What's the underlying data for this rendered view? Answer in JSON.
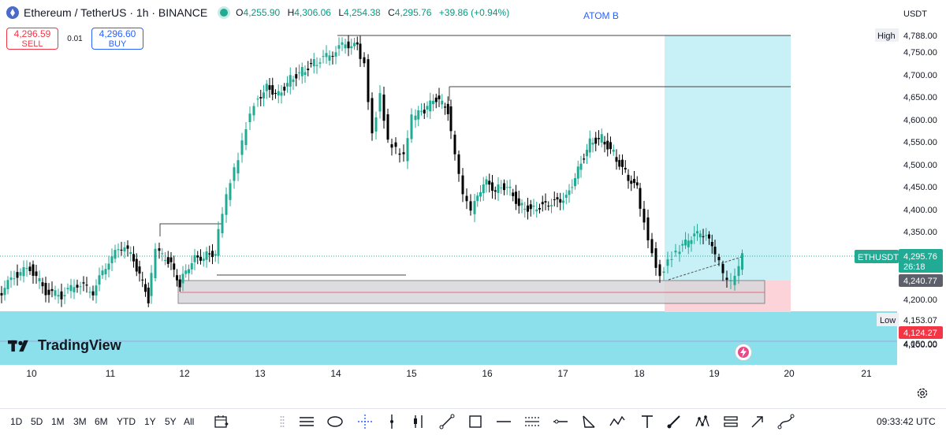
{
  "header": {
    "symbol": "Ethereum / TetherUS · 1h · BINANCE",
    "ohlc": [
      {
        "label": "O",
        "value": "4,255.90"
      },
      {
        "label": "H",
        "value": "4,306.06"
      },
      {
        "label": "L",
        "value": "4,254.38"
      },
      {
        "label": "C",
        "value": "4,295.76"
      }
    ],
    "change": "+39.86 (+0.94%)",
    "indicator_label": "ATOM B",
    "currency": "USDT"
  },
  "trade": {
    "sell_price": "4,296.59",
    "sell_label": "SELL",
    "spread": "0.01",
    "buy_price": "4,296.60",
    "buy_label": "BUY"
  },
  "price_axis": {
    "ticks": [
      "4,750.00",
      "4,700.00",
      "4,650.00",
      "4,600.00",
      "4,550.00",
      "4,500.00",
      "4,450.00",
      "4,400.00",
      "4,350.00",
      "4,200.00",
      "4,100.00",
      "4,050.00"
    ],
    "high_label": "High",
    "high_value": "4,788.00",
    "low_label": "Low",
    "low_value": "4,153.07",
    "symbol_tag": "ETHUSDT",
    "last_price": "4,295.76",
    "countdown": "26:18",
    "entry_price": "4,240.77",
    "stop_price": "4,124.27"
  },
  "chart_data": {
    "type": "candlestick",
    "symbol": "ETHUSDT",
    "x_labels": [
      "10",
      "11",
      "12",
      "13",
      "14",
      "15",
      "16",
      "17",
      "18",
      "19",
      "20",
      "21"
    ],
    "ylim": [
      4000,
      4800
    ],
    "high": 4788.0,
    "low": 4153.07,
    "last_price": 4295.76,
    "position": {
      "entry": 4240.77,
      "stop": 4124.27
    }
  },
  "time_axis": {
    "labels": [
      "10",
      "11",
      "12",
      "13",
      "14",
      "15",
      "16",
      "17",
      "18",
      "19",
      "20",
      "21"
    ]
  },
  "toolbar": {
    "timeframes": [
      "1D",
      "5D",
      "1M",
      "3M",
      "6M",
      "YTD",
      "1Y",
      "5Y",
      "All"
    ],
    "clock": "09:33:42 UTC"
  },
  "branding": {
    "logo_text": "TradingView"
  }
}
